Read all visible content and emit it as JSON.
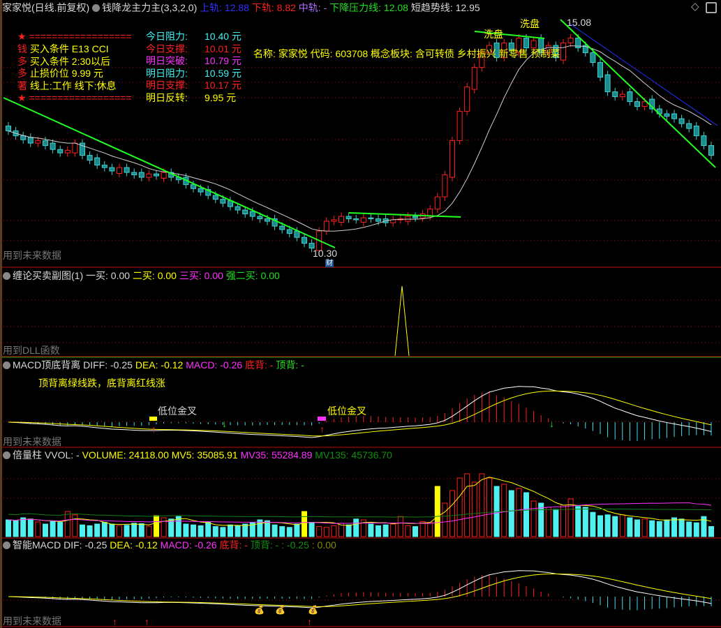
{
  "header": {
    "title": "家家悦(日线.前复权)",
    "indicator": "钱降龙主力主(3,3,2,0)",
    "upper_label": "上轨",
    "upper": "12.88",
    "lower_label": "下轨",
    "lower": "8.82",
    "mid_label": "中轨",
    "mid": "-",
    "pressure_label": "下降压力线",
    "pressure": "12.08",
    "short_label": "短趋势线",
    "short": "12.95"
  },
  "info": {
    "stars": "★ ==================",
    "rows": [
      {
        "k": "钱",
        "v": "买入条件 E13 CCI"
      },
      {
        "k": "多",
        "v": "买入条件 2:30以后"
      },
      {
        "k": "多",
        "v": "止损价位 9.99 元"
      },
      {
        "k": "著",
        "v": "线上:工作 线下:休息"
      }
    ],
    "levels": [
      {
        "k": "今日阻力:",
        "v": "10.40 元",
        "color": "#40f0f0"
      },
      {
        "k": "今日支撑:",
        "v": "10.01 元",
        "color": "#ff2020"
      },
      {
        "k": "明日突破:",
        "v": "10.79 元",
        "color": "#ff30ff"
      },
      {
        "k": "明日阻力:",
        "v": "10.59 元",
        "color": "#40f0f0"
      },
      {
        "k": "明日支撑:",
        "v": "10.17 元",
        "color": "#ff2020"
      },
      {
        "k": "明日反转:",
        "v": "9.95 元",
        "color": "#ffff00"
      }
    ],
    "stock": "名称: 家家悦 代码: 603708 概念板块: 含可转债 乡村振兴 新零售 预制菜"
  },
  "annotations": {
    "wash1": "洗盘",
    "wash2": "洗盘",
    "high": "15.08",
    "low": "10.30",
    "cai": "财",
    "future1": "用到未来数据",
    "dll": "用到DLL函数",
    "future2": "用到未来数据",
    "future3": "用到未来数据",
    "golden1": "低位金叉",
    "golden2": "低位金叉"
  },
  "panel2": {
    "title": "缠论买卖副图(1)",
    "b1_label": "一买:",
    "b1": "0.00",
    "b2_label": "二买:",
    "b2": "0.00",
    "b3_label": "三买:",
    "b3": "0.00",
    "sb2_label": "强二买:",
    "sb2": "0.00"
  },
  "panel3": {
    "title": "MACD顶底背离",
    "diff_label": "DIFF:",
    "diff": "-0.25",
    "dea_label": "DEA:",
    "dea": "-0.12",
    "macd_label": "MACD:",
    "macd": "-0.26",
    "bottom_label": "底背:",
    "bottom": "-",
    "top_label": "顶背:",
    "top": "-",
    "note": "顶背离绿线跌，底背离红线涨"
  },
  "panel4": {
    "title": "倍量柱",
    "vvol_label": "VVOL:",
    "vvol": "-",
    "volume_label": "VOLUME:",
    "volume": "24118.00",
    "mv5_label": "MV5:",
    "mv5": "35085.91",
    "mv35_label": "MV35:",
    "mv35": "55284.89",
    "mv135_label": "MV135:",
    "mv135": "45736.70"
  },
  "panel5": {
    "title": "智能MACD",
    "dif_label": "DIF:",
    "dif": "-0.25",
    "dea_label": "DEA:",
    "dea": "-0.12",
    "macd_label": "MACD:",
    "macd": "-0.26",
    "bottom_label": "底背:",
    "bottom": "-",
    "top_label": "顶背:",
    "top": "-",
    "extra1": ": -0.25",
    "extra2": ": 0.00"
  },
  "colors": {
    "up": "#ff2020",
    "down": "#40d0d0",
    "pressure": "#20ff20",
    "ma": "#d0d0d0",
    "grid": "#a01010"
  },
  "chart_data": {
    "type": "candlestick",
    "ylim": [
      10.3,
      15.08
    ],
    "close": [
      12.8,
      12.7,
      12.62,
      12.55,
      12.6,
      12.5,
      12.42,
      12.35,
      12.4,
      12.55,
      12.3,
      12.2,
      12.1,
      12.05,
      11.98,
      12.05,
      11.95,
      11.9,
      11.85,
      11.92,
      11.88,
      11.95,
      11.85,
      11.8,
      11.7,
      11.62,
      11.55,
      11.48,
      11.4,
      11.32,
      11.25,
      11.18,
      11.1,
      11.05,
      11.0,
      10.95,
      10.85,
      10.78,
      10.7,
      10.62,
      10.5,
      10.4,
      10.75,
      10.95,
      10.98,
      11.05,
      11.0,
      10.98,
      11.02,
      11.0,
      10.95,
      10.92,
      10.98,
      11.0,
      11.05,
      11.02,
      11.1,
      11.2,
      11.45,
      11.9,
      12.6,
      13.2,
      13.7,
      14.1,
      14.4,
      14.55,
      14.3,
      14.6,
      14.45,
      14.7,
      14.5,
      14.65,
      14.4,
      14.55,
      14.3,
      14.6,
      14.7,
      14.5,
      14.4,
      14.2,
      13.9,
      13.6,
      13.5,
      13.55,
      13.4,
      13.3,
      13.4,
      13.25,
      13.15,
      13.1,
      13.05,
      12.95,
      12.85,
      12.7,
      12.5,
      12.3
    ],
    "volume": [
      40000,
      38000,
      45000,
      42000,
      35000,
      30000,
      36000,
      34000,
      60000,
      52000,
      28000,
      26000,
      30000,
      34000,
      30000,
      26000,
      27000,
      32000,
      31000,
      25000,
      50000,
      45000,
      42000,
      48000,
      30000,
      28000,
      26000,
      34000,
      24000,
      22000,
      28000,
      26000,
      30000,
      34000,
      40000,
      38000,
      28000,
      24000,
      22000,
      30000,
      60000,
      34000,
      24000,
      22000,
      26000,
      32000,
      28000,
      42000,
      40000,
      30000,
      26000,
      28000,
      30000,
      48000,
      26000,
      24000,
      36000,
      34000,
      120000,
      80000,
      110000,
      140000,
      150000,
      130000,
      150000,
      140000,
      120000,
      125000,
      110000,
      115000,
      105000,
      85000,
      80000,
      70000,
      65000,
      75000,
      90000,
      72000,
      70000,
      58000,
      50000,
      52000,
      48000,
      52000,
      45000,
      40000,
      42000,
      38000,
      36000,
      40000,
      45000,
      42000,
      35000,
      33000,
      48000,
      24118
    ]
  }
}
